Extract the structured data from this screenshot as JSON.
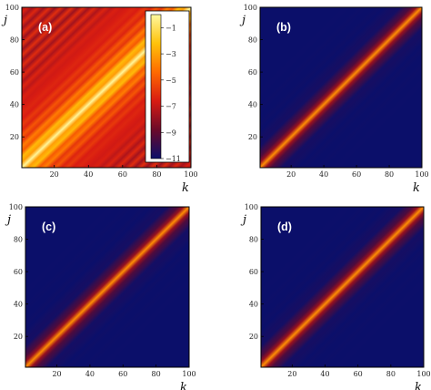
{
  "chart_data": [
    {
      "type": "heatmap",
      "panel_label": "(a)",
      "xlabel": "k",
      "ylabel": "j",
      "xlim": [
        1,
        100
      ],
      "ylim": [
        1,
        100
      ],
      "x_ticks": [
        "20",
        "40",
        "60",
        "80",
        "100"
      ],
      "y_ticks": [
        "20",
        "40",
        "60",
        "80",
        "100"
      ],
      "pattern": "diagonal bands, bright yellow along k = j, alternating red/orange stripes, decaying slowly away from diagonal",
      "diagonal_value": -1,
      "background_value": -7,
      "decay_scale": 14,
      "colorbar": {
        "ticks": [
          "−1",
          "−3",
          "−5",
          "−7",
          "−9",
          "−11"
        ],
        "tick_values": [
          -1,
          -3,
          -5,
          -7,
          -9,
          -11
        ],
        "range": [
          -11,
          0
        ],
        "colors": [
          "#0b0f6a",
          "#6b0a2a",
          "#d81b12",
          "#ff6a00",
          "#ffc20a",
          "#fff8a0"
        ]
      }
    },
    {
      "type": "heatmap",
      "panel_label": "(b)",
      "xlabel": "k",
      "ylabel": "j",
      "xlim": [
        1,
        100
      ],
      "ylim": [
        1,
        100
      ],
      "x_ticks": [
        "20",
        "40",
        "60",
        "80",
        "100"
      ],
      "y_ticks": [
        "20",
        "40",
        "60",
        "80",
        "100"
      ],
      "pattern": "narrow red band along k = j on dark blue background",
      "diagonal_value": -4,
      "background_value": -11,
      "decay_scale": 4.5
    },
    {
      "type": "heatmap",
      "panel_label": "(c)",
      "xlabel": "k",
      "ylabel": "j",
      "xlim": [
        1,
        100
      ],
      "ylim": [
        1,
        100
      ],
      "x_ticks": [
        "20",
        "40",
        "60",
        "80",
        "100"
      ],
      "y_ticks": [
        "20",
        "40",
        "60",
        "80",
        "100"
      ],
      "pattern": "narrow red band along k = j on dark blue background",
      "diagonal_value": -4,
      "background_value": -11,
      "decay_scale": 4.5
    },
    {
      "type": "heatmap",
      "panel_label": "(d)",
      "xlabel": "k",
      "ylabel": "j",
      "xlim": [
        1,
        100
      ],
      "ylim": [
        1,
        100
      ],
      "x_ticks": [
        "20",
        "40",
        "60",
        "80",
        "100"
      ],
      "y_ticks": [
        "20",
        "40",
        "60",
        "80",
        "100"
      ],
      "pattern": "narrow red band along k = j on dark blue background",
      "diagonal_value": -4,
      "background_value": -11,
      "decay_scale": 4.5
    }
  ]
}
